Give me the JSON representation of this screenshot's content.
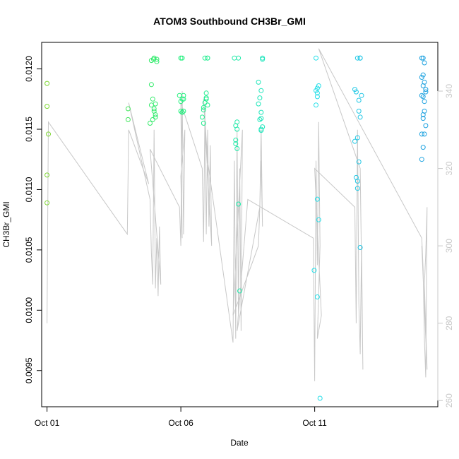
{
  "chart_data": {
    "type": "scatter",
    "title": "ATOM3 Southbound CH3Br_GMI",
    "xlabel": "Date",
    "ylabel": "CH3Br_GMI",
    "xlim": [
      -0.2,
      14.6
    ],
    "ylim": [
      0.0092,
      0.01222
    ],
    "y2lim": [
      258.4,
      352.6
    ],
    "x_ticks": [
      {
        "value": 0,
        "label": "Oct 01"
      },
      {
        "value": 5,
        "label": "Oct 06"
      },
      {
        "value": 10,
        "label": "Oct 11"
      }
    ],
    "y_ticks": [
      {
        "value": 0.0095,
        "label": "0.0095"
      },
      {
        "value": 0.01,
        "label": "0.0100"
      },
      {
        "value": 0.0105,
        "label": "0.0105"
      },
      {
        "value": 0.011,
        "label": "0.0110"
      },
      {
        "value": 0.0115,
        "label": "0.0115"
      },
      {
        "value": 0.012,
        "label": "0.0120"
      }
    ],
    "y2_ticks": [
      {
        "value": 260,
        "label": "260"
      },
      {
        "value": 280,
        "label": "280"
      },
      {
        "value": 300,
        "label": "300"
      },
      {
        "value": 320,
        "label": "320"
      },
      {
        "value": 340,
        "label": "340"
      }
    ],
    "grid": false,
    "colors": {
      "points_start": "#7dd630",
      "points_mid": "#1ef07a",
      "points_cyan": "#22e0e8",
      "points_end": "#1ea0e0",
      "line": "#c8c8c8",
      "frame": "#000000",
      "right_axis": "#c8c8c8"
    },
    "series": [
      {
        "type": "points",
        "points": [
          [
            0.0,
            0.01188
          ],
          [
            0.0,
            0.01169
          ],
          [
            0.05,
            0.01146
          ],
          [
            0.0,
            0.01112
          ],
          [
            0.0,
            0.01089
          ],
          [
            3.03,
            0.01158
          ],
          [
            3.03,
            0.01167
          ],
          [
            3.85,
            0.01155
          ],
          [
            3.9,
            0.0117
          ],
          [
            3.9,
            0.01187
          ],
          [
            3.9,
            0.01207
          ],
          [
            3.95,
            0.01175
          ],
          [
            3.95,
            0.01158
          ],
          [
            4.0,
            0.01165
          ],
          [
            4.0,
            0.01209
          ],
          [
            4.0,
            0.01167
          ],
          [
            4.05,
            0.01162
          ],
          [
            4.05,
            0.0116
          ],
          [
            4.1,
            0.01208
          ],
          [
            4.1,
            0.01206
          ],
          [
            4.05,
            0.01171
          ],
          [
            3.98,
            0.01208
          ],
          [
            4.95,
            0.01178
          ],
          [
            5.0,
            0.01173
          ],
          [
            5.0,
            0.01165
          ],
          [
            5.0,
            0.01209
          ],
          [
            5.05,
            0.01209
          ],
          [
            5.05,
            0.01175
          ],
          [
            5.1,
            0.01165
          ],
          [
            5.1,
            0.01178
          ],
          [
            5.1,
            0.01175
          ],
          [
            5.05,
            0.01164
          ],
          [
            5.8,
            0.0116
          ],
          [
            5.85,
            0.01166
          ],
          [
            5.85,
            0.01168
          ],
          [
            5.9,
            0.01172
          ],
          [
            5.9,
            0.01209
          ],
          [
            5.95,
            0.01176
          ],
          [
            5.95,
            0.0118
          ],
          [
            6.0,
            0.01209
          ],
          [
            6.0,
            0.01209
          ],
          [
            5.95,
            0.01175
          ],
          [
            5.85,
            0.01155
          ],
          [
            6.0,
            0.0117
          ],
          [
            7.0,
            0.01209
          ],
          [
            7.05,
            0.01153
          ],
          [
            7.05,
            0.01141
          ],
          [
            7.05,
            0.01138
          ],
          [
            7.1,
            0.01134
          ],
          [
            7.1,
            0.01156
          ],
          [
            7.1,
            0.0115
          ],
          [
            7.15,
            0.01209
          ],
          [
            7.15,
            0.01088
          ],
          [
            7.2,
            0.01016
          ],
          [
            7.9,
            0.01189
          ],
          [
            7.9,
            0.01171
          ],
          [
            7.95,
            0.01176
          ],
          [
            7.95,
            0.01158
          ],
          [
            8.0,
            0.01182
          ],
          [
            8.0,
            0.01159
          ],
          [
            8.0,
            0.01149
          ],
          [
            8.05,
            0.01152
          ],
          [
            8.05,
            0.01208
          ],
          [
            8.05,
            0.01209
          ],
          [
            8.0,
            0.01164
          ],
          [
            8.0,
            0.0115
          ],
          [
            9.98,
            0.01033
          ],
          [
            10.05,
            0.01209
          ],
          [
            10.05,
            0.01182
          ],
          [
            10.1,
            0.01184
          ],
          [
            10.1,
            0.0118
          ],
          [
            10.05,
            0.0117
          ],
          [
            10.1,
            0.01177
          ],
          [
            10.15,
            0.01186
          ],
          [
            10.1,
            0.01092
          ],
          [
            10.15,
            0.01075
          ],
          [
            10.1,
            0.01011
          ],
          [
            10.2,
            0.00927
          ],
          [
            11.5,
            0.01183
          ],
          [
            11.5,
            0.0114
          ],
          [
            11.55,
            0.0111
          ],
          [
            11.6,
            0.01107
          ],
          [
            11.6,
            0.01101
          ],
          [
            11.6,
            0.01143
          ],
          [
            11.65,
            0.01123
          ],
          [
            11.65,
            0.01174
          ],
          [
            11.7,
            0.01209
          ],
          [
            11.7,
            0.01209
          ],
          [
            11.7,
            0.01209
          ],
          [
            11.65,
            0.01165
          ],
          [
            11.7,
            0.0116
          ],
          [
            11.75,
            0.01178
          ],
          [
            11.7,
            0.01052
          ],
          [
            11.6,
            0.01209
          ],
          [
            11.55,
            0.01181
          ],
          [
            14.0,
            0.01209
          ],
          [
            14.05,
            0.01209
          ],
          [
            14.1,
            0.01205
          ],
          [
            14.05,
            0.01195
          ],
          [
            14.0,
            0.01193
          ],
          [
            14.1,
            0.01189
          ],
          [
            14.15,
            0.01181
          ],
          [
            14.15,
            0.01183
          ],
          [
            14.05,
            0.01186
          ],
          [
            14.0,
            0.01178
          ],
          [
            14.05,
            0.01177
          ],
          [
            14.1,
            0.01165
          ],
          [
            14.05,
            0.01159
          ],
          [
            14.05,
            0.01162
          ],
          [
            14.15,
            0.01153
          ],
          [
            14.0,
            0.01146
          ],
          [
            14.1,
            0.01146
          ],
          [
            14.05,
            0.01135
          ],
          [
            14.0,
            0.01125
          ],
          [
            14.1,
            0.01173
          ]
        ]
      },
      {
        "type": "line",
        "axis": "right",
        "points": [
          [
            0.0,
            280
          ],
          [
            0.05,
            332
          ],
          [
            3.0,
            303
          ],
          [
            3.05,
            330
          ],
          [
            3.8,
            316
          ],
          [
            3.05,
            337
          ],
          [
            3.85,
            312
          ],
          [
            3.9,
            298
          ],
          [
            3.95,
            290
          ],
          [
            4.0,
            330
          ],
          [
            4.05,
            289
          ],
          [
            4.1,
            302
          ],
          [
            4.15,
            287
          ],
          [
            4.2,
            305
          ],
          [
            4.25,
            290
          ],
          [
            3.85,
            325
          ],
          [
            4.95,
            310
          ],
          [
            5.0,
            300
          ],
          [
            5.05,
            340
          ],
          [
            5.1,
            303
          ],
          [
            5.15,
            330
          ],
          [
            5.0,
            318
          ],
          [
            5.05,
            302
          ],
          [
            5.0,
            337
          ],
          [
            5.8,
            320
          ],
          [
            5.85,
            301
          ],
          [
            5.9,
            335
          ],
          [
            5.95,
            303
          ],
          [
            6.0,
            330
          ],
          [
            6.05,
            305
          ],
          [
            6.1,
            326
          ],
          [
            6.15,
            300
          ],
          [
            5.85,
            338
          ],
          [
            6.0,
            322
          ],
          [
            6.95,
            275
          ],
          [
            7.0,
            322
          ],
          [
            7.05,
            276
          ],
          [
            7.1,
            330
          ],
          [
            7.15,
            282
          ],
          [
            7.2,
            320
          ],
          [
            7.25,
            278
          ],
          [
            7.3,
            330
          ],
          [
            6.95,
            282
          ],
          [
            7.9,
            300
          ],
          [
            7.95,
            310
          ],
          [
            8.0,
            330
          ],
          [
            8.05,
            305
          ],
          [
            8.0,
            322
          ],
          [
            7.95,
            310
          ],
          [
            7.1,
            278
          ],
          [
            7.5,
            312
          ],
          [
            9.95,
            302
          ],
          [
            10.0,
            265
          ],
          [
            10.05,
            322
          ],
          [
            10.1,
            295
          ],
          [
            10.15,
            332
          ],
          [
            10.2,
            300
          ],
          [
            10.1,
            276
          ],
          [
            10.25,
            282
          ],
          [
            10.0,
            320
          ],
          [
            11.5,
            310
          ],
          [
            11.55,
            280
          ],
          [
            11.6,
            330
          ],
          [
            11.65,
            285
          ],
          [
            11.7,
            272
          ],
          [
            11.75,
            300
          ],
          [
            11.8,
            268
          ],
          [
            11.7,
            320
          ],
          [
            10.15,
            351
          ],
          [
            14.0,
            302
          ],
          [
            14.05,
            294
          ],
          [
            14.1,
            276
          ],
          [
            14.15,
            266
          ],
          [
            14.2,
            310
          ],
          [
            14.15,
            298
          ],
          [
            14.1,
            290
          ],
          [
            14.2,
            268
          ],
          [
            14.0,
            300
          ]
        ]
      }
    ]
  }
}
